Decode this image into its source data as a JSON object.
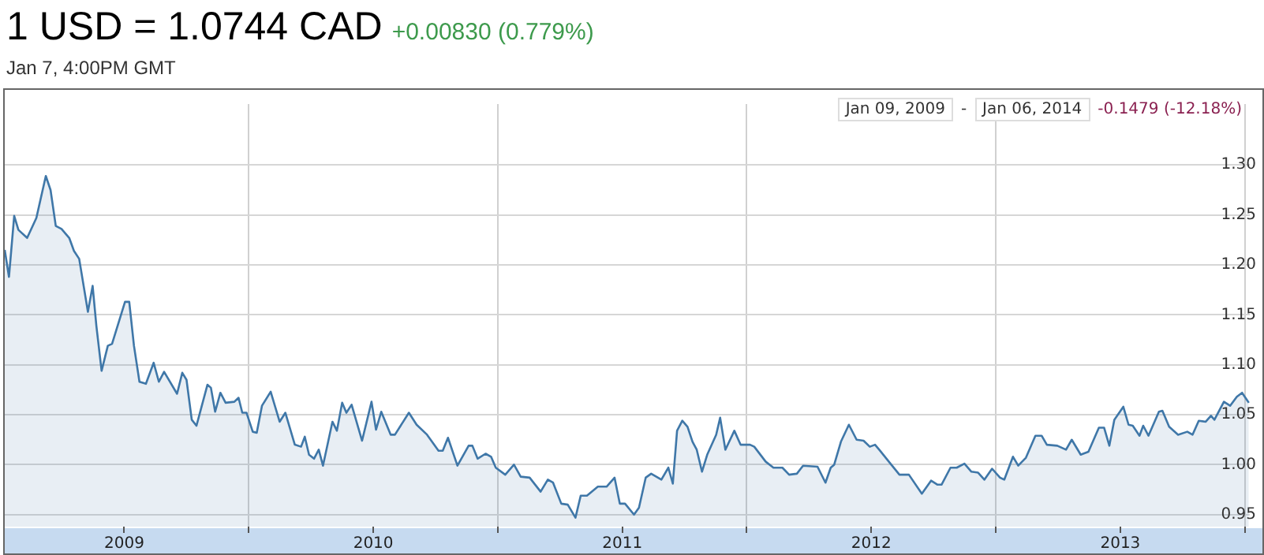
{
  "chart_data": {
    "type": "area",
    "title": "1 USD = 1.0744 CAD",
    "subtitle": "+0.00830 (0.779%)",
    "annotations": [
      "Jan 7, 4:00PM GMT",
      "Jan 09, 2009",
      "-",
      "Jan 06, 2014",
      "-0.1479 (-12.18%)"
    ],
    "xlim": [
      2009.02,
      2014.02
    ],
    "xticks": [
      {
        "value": 2009.5,
        "label": "2009"
      },
      {
        "value": 2010,
        "label": null
      },
      {
        "value": 2010.5,
        "label": "2010"
      },
      {
        "value": 2011,
        "label": null
      },
      {
        "value": 2011.5,
        "label": "2011"
      },
      {
        "value": 2012,
        "label": null
      },
      {
        "value": 2012.5,
        "label": "2012"
      },
      {
        "value": 2013,
        "label": null
      },
      {
        "value": 2013.5,
        "label": "2013"
      },
      {
        "value": 2014,
        "label": null
      }
    ],
    "ylim": [
      0.938,
      1.361
    ],
    "yticks": [
      {
        "value": 0.95,
        "label": "0.95"
      },
      {
        "value": 1.0,
        "label": "1.00"
      },
      {
        "value": 1.05,
        "label": "1.05"
      },
      {
        "value": 1.1,
        "label": "1.10"
      },
      {
        "value": 1.15,
        "label": "1.15"
      },
      {
        "value": 1.2,
        "label": "1.20"
      },
      {
        "value": 1.25,
        "label": "1.25"
      },
      {
        "value": 1.3,
        "label": "1.30"
      }
    ],
    "grid": true,
    "series": [
      {
        "color": "#3f77a8",
        "x": [
          2009.02,
          2009.037,
          2009.058,
          2009.075,
          2009.11,
          2009.147,
          2009.185,
          2009.204,
          2009.225,
          2009.248,
          2009.279,
          2009.298,
          2009.319,
          2009.354,
          2009.373,
          2009.388,
          2009.409,
          2009.434,
          2009.451,
          2009.503,
          2009.52,
          2009.539,
          2009.561,
          2009.587,
          2009.618,
          2009.639,
          2009.66,
          2009.712,
          2009.733,
          2009.75,
          2009.771,
          2009.79,
          2009.834,
          2009.848,
          2009.865,
          2009.886,
          2009.907,
          2009.942,
          2009.959,
          2009.974,
          2009.991,
          2010.016,
          2010.032,
          2010.053,
          2010.088,
          2010.124,
          2010.147,
          2010.185,
          2010.21,
          2010.225,
          2010.242,
          2010.262,
          2010.281,
          2010.298,
          2010.336,
          2010.354,
          2010.375,
          2010.392,
          2010.413,
          2010.455,
          2010.493,
          2010.511,
          2010.532,
          2010.57,
          2010.587,
          2010.643,
          2010.674,
          2010.716,
          2010.762,
          2010.779,
          2010.8,
          2010.838,
          2010.883,
          2010.898,
          2010.919,
          2010.951,
          2010.973,
          2010.992,
          2011.03,
          2011.065,
          2011.092,
          2011.128,
          2011.172,
          2011.201,
          2011.222,
          2011.255,
          2011.281,
          2011.312,
          2011.333,
          2011.358,
          2011.402,
          2011.437,
          2011.469,
          2011.49,
          2011.511,
          2011.547,
          2011.567,
          2011.594,
          2011.616,
          2011.657,
          2011.685,
          2011.703,
          2011.72,
          2011.741,
          2011.762,
          2011.782,
          2011.799,
          2011.82,
          2011.841,
          2011.877,
          2011.893,
          2011.914,
          2011.95,
          2011.975,
          2012.013,
          2012.03,
          2012.076,
          2012.107,
          2012.143,
          2012.17,
          2012.201,
          2012.226,
          2012.284,
          2012.316,
          2012.337,
          2012.351,
          2012.378,
          2012.41,
          2012.441,
          2012.469,
          2012.494,
          2012.515,
          2012.535,
          2012.577,
          2012.613,
          2012.651,
          2012.703,
          2012.74,
          2012.766,
          2012.782,
          2012.818,
          2012.843,
          2012.874,
          2012.902,
          2012.929,
          2012.954,
          2012.985,
          2013.017,
          2013.034,
          2013.069,
          2013.09,
          2013.121,
          2013.159,
          2013.184,
          2013.205,
          2013.247,
          2013.282,
          2013.305,
          2013.341,
          2013.372,
          2013.414,
          2013.435,
          2013.456,
          2013.476,
          2013.512,
          2013.533,
          2013.55,
          2013.577,
          2013.592,
          2013.613,
          2013.655,
          2013.669,
          2013.696,
          2013.732,
          2013.769,
          2013.79,
          2013.815,
          2013.843,
          2013.864,
          2013.878,
          2013.916,
          2013.941,
          2013.968,
          2013.989,
          2014.016
        ],
        "values": [
          1.215,
          1.188,
          1.249,
          1.235,
          1.227,
          1.247,
          1.289,
          1.275,
          1.239,
          1.236,
          1.227,
          1.214,
          1.206,
          1.153,
          1.179,
          1.139,
          1.094,
          1.119,
          1.121,
          1.163,
          1.163,
          1.119,
          1.083,
          1.081,
          1.102,
          1.083,
          1.093,
          1.071,
          1.092,
          1.085,
          1.045,
          1.039,
          1.08,
          1.077,
          1.053,
          1.072,
          1.062,
          1.063,
          1.067,
          1.052,
          1.052,
          1.033,
          1.032,
          1.059,
          1.073,
          1.043,
          1.052,
          1.02,
          1.018,
          1.028,
          1.01,
          1.006,
          1.015,
          0.999,
          1.043,
          1.034,
          1.062,
          1.052,
          1.06,
          1.024,
          1.063,
          1.035,
          1.053,
          1.03,
          1.03,
          1.052,
          1.04,
          1.03,
          1.014,
          1.014,
          1.027,
          0.999,
          1.019,
          1.019,
          1.006,
          1.011,
          1.008,
          0.997,
          0.99,
          1.0,
          0.988,
          0.987,
          0.973,
          0.985,
          0.982,
          0.961,
          0.96,
          0.947,
          0.969,
          0.969,
          0.978,
          0.978,
          0.987,
          0.961,
          0.961,
          0.95,
          0.957,
          0.987,
          0.991,
          0.985,
          0.997,
          0.981,
          1.034,
          1.044,
          1.038,
          1.023,
          1.015,
          0.993,
          1.01,
          1.03,
          1.047,
          1.015,
          1.034,
          1.02,
          1.02,
          1.018,
          1.003,
          0.997,
          0.997,
          0.99,
          0.991,
          0.999,
          0.998,
          0.982,
          0.997,
          1.0,
          1.023,
          1.04,
          1.025,
          1.024,
          1.018,
          1.02,
          1.014,
          1.001,
          0.99,
          0.99,
          0.971,
          0.984,
          0.98,
          0.98,
          0.997,
          0.997,
          1.001,
          0.993,
          0.992,
          0.985,
          0.996,
          0.987,
          0.985,
          1.008,
          0.999,
          1.007,
          1.029,
          1.029,
          1.02,
          1.019,
          1.015,
          1.025,
          1.01,
          1.013,
          1.037,
          1.037,
          1.019,
          1.045,
          1.058,
          1.04,
          1.039,
          1.029,
          1.039,
          1.029,
          1.053,
          1.054,
          1.038,
          1.03,
          1.033,
          1.03,
          1.044,
          1.043,
          1.049,
          1.045,
          1.063,
          1.059,
          1.068,
          1.072,
          1.062
        ]
      }
    ]
  }
}
